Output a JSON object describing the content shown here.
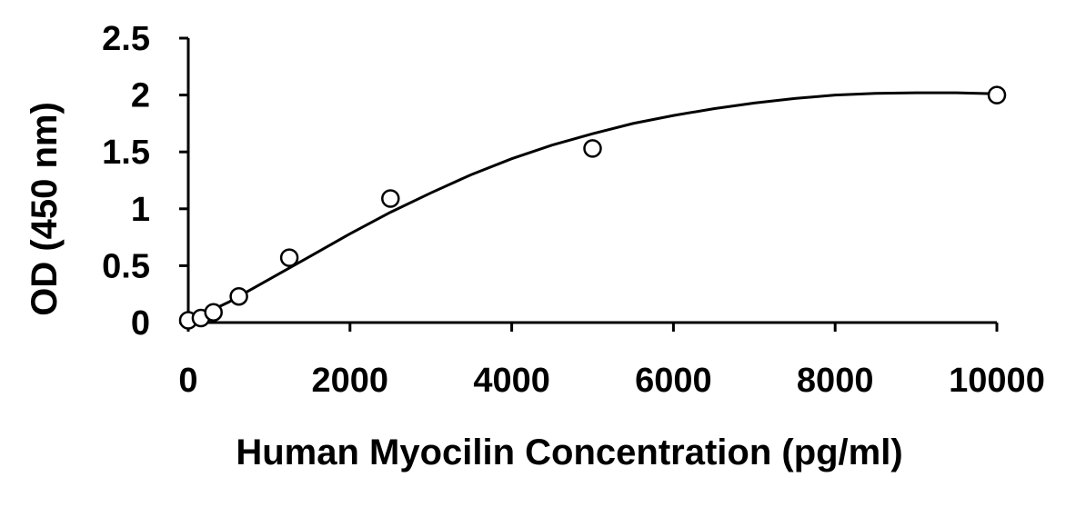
{
  "chart_data": {
    "type": "scatter",
    "title": "",
    "xlabel": "Human Myocilin Concentration (pg/ml)",
    "ylabel": "OD (450 nm)",
    "xlim": [
      0,
      10000
    ],
    "ylim": [
      0,
      2.5
    ],
    "x_ticks": [
      "0",
      "2000",
      "4000",
      "6000",
      "8000",
      "10000"
    ],
    "y_ticks": [
      "0",
      "0.5",
      "1",
      "1.5",
      "2",
      "2.5"
    ],
    "grid": false,
    "legend": "none",
    "series": [
      {
        "x": [
          0,
          156,
          312,
          625,
          1250,
          2500,
          5000,
          10000
        ],
        "y": [
          0.02,
          0.04,
          0.09,
          0.23,
          0.57,
          1.09,
          1.53,
          2.0
        ],
        "marker": "open-circle",
        "color": "#000000"
      }
    ],
    "fit_curve": {
      "x": [
        0,
        500,
        1000,
        1500,
        2000,
        2500,
        3000,
        3500,
        4000,
        4500,
        5000,
        5500,
        6000,
        6500,
        7000,
        7500,
        8000,
        8500,
        9000,
        9500,
        10000
      ],
      "y": [
        0.01,
        0.18,
        0.38,
        0.58,
        0.78,
        0.97,
        1.14,
        1.3,
        1.44,
        1.56,
        1.66,
        1.75,
        1.82,
        1.88,
        1.93,
        1.97,
        2.0,
        2.015,
        2.02,
        2.02,
        2.01
      ],
      "color": "#000000"
    }
  }
}
